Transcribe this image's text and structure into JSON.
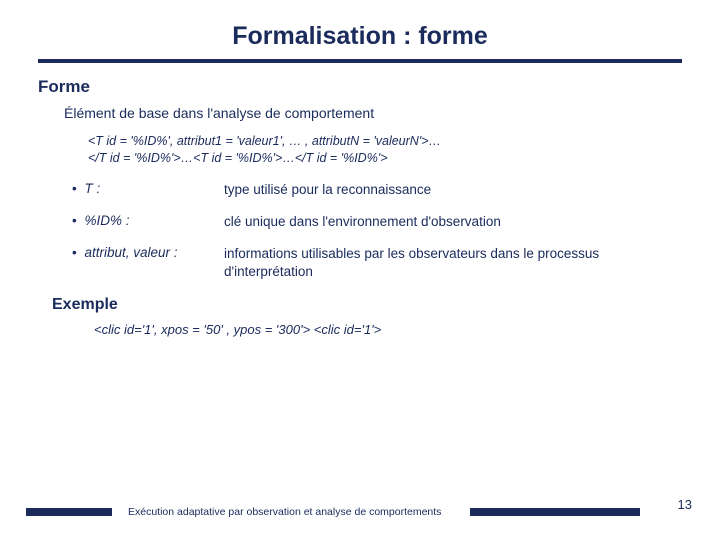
{
  "title": "Formalisation : forme",
  "section": "Forme",
  "intro": "Élément de base dans l'analyse de comportement",
  "code_line1": "<T id = '%ID%', attribut1 = 'valeur1', … , attributN = 'valeurN'>…",
  "code_line2": "</T id = '%ID%'>…<T id = '%ID%'>…</T id = '%ID%'>",
  "defs": [
    {
      "term": "T :",
      "desc": "type utilisé pour la reconnaissance"
    },
    {
      "term": "%ID% :",
      "desc": "clé unique dans l'environnement d'observation"
    },
    {
      "term": "attribut, valeur :",
      "desc": "informations utilisables par les observateurs dans le processus d'interprétation"
    }
  ],
  "example_heading": "Exemple",
  "example_code": "<clic id='1', xpos = '50' , ypos = '300'>  <clic id='1'>",
  "footer_text": "Exécution adaptative par observation et analyse de comportements",
  "page_number": "13",
  "colors": {
    "text": "#1a2b5c",
    "background": "#ffffff"
  }
}
